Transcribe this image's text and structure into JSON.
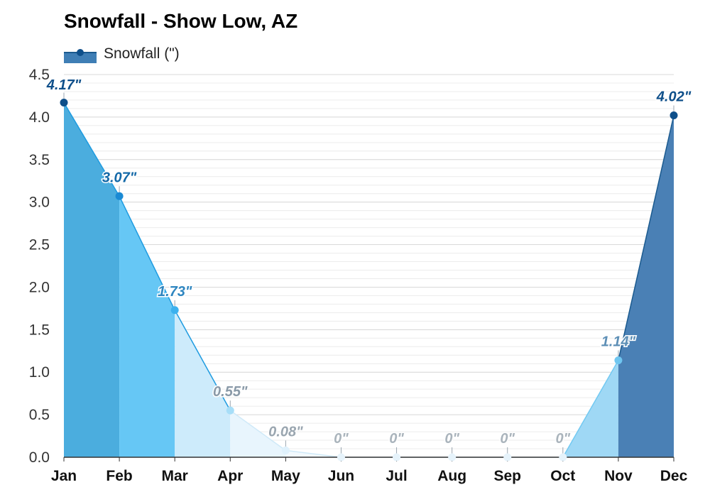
{
  "chart_data": {
    "type": "area",
    "title": "Snowfall - Show Low, AZ",
    "xlabel": "",
    "ylabel": "",
    "categories": [
      "Jan",
      "Feb",
      "Mar",
      "Apr",
      "May",
      "Jun",
      "Jul",
      "Aug",
      "Sep",
      "Oct",
      "Nov",
      "Dec"
    ],
    "series": [
      {
        "name": "Snowfall (\")",
        "values": [
          4.17,
          3.07,
          1.73,
          0.55,
          0.08,
          0,
          0,
          0,
          0,
          0,
          1.14,
          4.02
        ],
        "labels": [
          "4.17\"",
          "3.07\"",
          "1.73\"",
          "0.55\"",
          "0.08\"",
          "0\"",
          "0\"",
          "0\"",
          "0\"",
          "0\"",
          "1.14\"",
          "4.02\""
        ]
      }
    ],
    "ylim": [
      0,
      4.5
    ],
    "yticks": [
      "0.0",
      "0.5",
      "1.0",
      "1.5",
      "2.0",
      "2.5",
      "3.0",
      "3.5",
      "4.0",
      "4.5"
    ],
    "grid": true,
    "legend_position": "top-left",
    "segment_fill_colors": [
      "#4badde",
      "#66c7f5",
      "#cdebfb",
      "#e8f5fd",
      "#f2f9fe",
      "#f7fbfe",
      "#f7fbfe",
      "#f7fbfe",
      "#f7fbfe",
      "#9fd8f5",
      "#4a80b5"
    ],
    "point_colors": [
      "#0e4f8a",
      "#1a8ad4",
      "#3cb1ee",
      "#a7def8",
      "#dff1fc",
      "#e6f3fb",
      "#e6f3fb",
      "#e6f3fb",
      "#e6f3fb",
      "#e6f3fb",
      "#6fc6f0",
      "#0e4f8a"
    ],
    "label_colors": [
      "#0e4f8a",
      "#1469a8",
      "#2f86c0",
      "#8a9aa8",
      "#9aa6b0",
      "#aab4bc",
      "#aab4bc",
      "#aab4bc",
      "#aab4bc",
      "#aab4bc",
      "#5d8fb6",
      "#0e4f8a"
    ]
  }
}
